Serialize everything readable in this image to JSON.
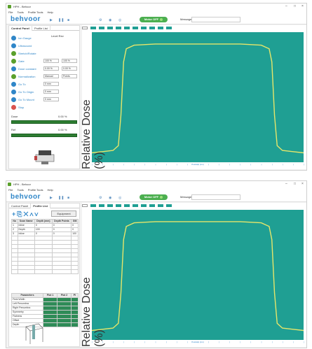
{
  "window": {
    "title": "HPH - Behoor",
    "app_logo": "behvoor"
  },
  "menu": [
    "File",
    "Tools",
    "Profile Tools",
    "Help"
  ],
  "toolbar": {
    "motor_label": "Motor OFF",
    "message_label": "Message"
  },
  "side_tabs": [
    "Control Panel",
    "Profile List"
  ],
  "control_panel": {
    "rows": [
      {
        "label": "Ion Gauge",
        "icon": "gauge-icon"
      },
      {
        "label": "Ultrasound",
        "icon": "ultrasound-icon"
      },
      {
        "label": "Stretch/Rotate",
        "icon": "radiation-icon"
      },
      {
        "label": "Gate",
        "icon": "radiation-icon",
        "v1": "100 %",
        "v2": "100 %"
      },
      {
        "label": "Dose constant",
        "icon": "gauge-icon",
        "v1": "0.00 %",
        "v2": "0.00 %"
      },
      {
        "label": "Normalization",
        "icon": "radiation-icon",
        "v1": "Manual",
        "v2": "Points"
      },
      {
        "label": "Go To",
        "icon": "target-icon",
        "v1": "0 mm"
      },
      {
        "label": "Go To Origin",
        "icon": "target-icon",
        "v1": "0 mm"
      },
      {
        "label": "Go To Mount",
        "icon": "target-icon",
        "v1": "0 mm"
      },
      {
        "label": "Stop",
        "icon": "stop-icon"
      }
    ],
    "head_small": [
      "Level",
      "Rev"
    ],
    "dose_label": "Dose",
    "dose_value": "0.00 %",
    "ref_label": "Ref",
    "ref_value": "0.00 %"
  },
  "profile_list": {
    "equipment_label": "Equipment",
    "columns": [
      "No",
      "Scan Name",
      "Depth (mm)",
      "Depth Points",
      "GM"
    ],
    "rows": [
      [
        "1",
        "Inline",
        "0",
        "0",
        "0"
      ],
      [
        "2",
        "Depth",
        "100",
        "0",
        "0"
      ],
      [
        "3",
        "Inline",
        "0",
        "0",
        "100"
      ]
    ],
    "param_columns": [
      "Parameters",
      "Plot 1",
      "Plot 2",
      "Pl"
    ],
    "param_rows": [
      "Field Width",
      "Left Penumbra",
      "Right Penumbra",
      "Symmetry",
      "Flatness",
      "Offset",
      "Depth"
    ]
  },
  "chart_data": {
    "type": "line",
    "title": "",
    "xlabel": "Position (cm)",
    "ylabel": "Relative Dose (%)",
    "ylim": [
      0,
      110
    ],
    "xlim": [
      -20,
      20
    ],
    "series": [
      {
        "values": [
          [
            -20,
            8
          ],
          [
            -18,
            9
          ],
          [
            -16,
            10
          ],
          [
            -15,
            14
          ],
          [
            -14.5,
            40
          ],
          [
            -14,
            85
          ],
          [
            -13.5,
            96
          ],
          [
            -12,
            99
          ],
          [
            -8,
            100
          ],
          [
            0,
            100
          ],
          [
            8,
            100
          ],
          [
            12,
            99
          ],
          [
            13.5,
            96
          ],
          [
            14,
            85
          ],
          [
            14.5,
            40
          ],
          [
            15,
            14
          ],
          [
            16,
            10
          ],
          [
            18,
            9
          ],
          [
            20,
            8
          ]
        ]
      }
    ],
    "colors": {
      "background": "#1f9f93",
      "line": "#e6e66a"
    }
  },
  "plot_strip_count": 11
}
